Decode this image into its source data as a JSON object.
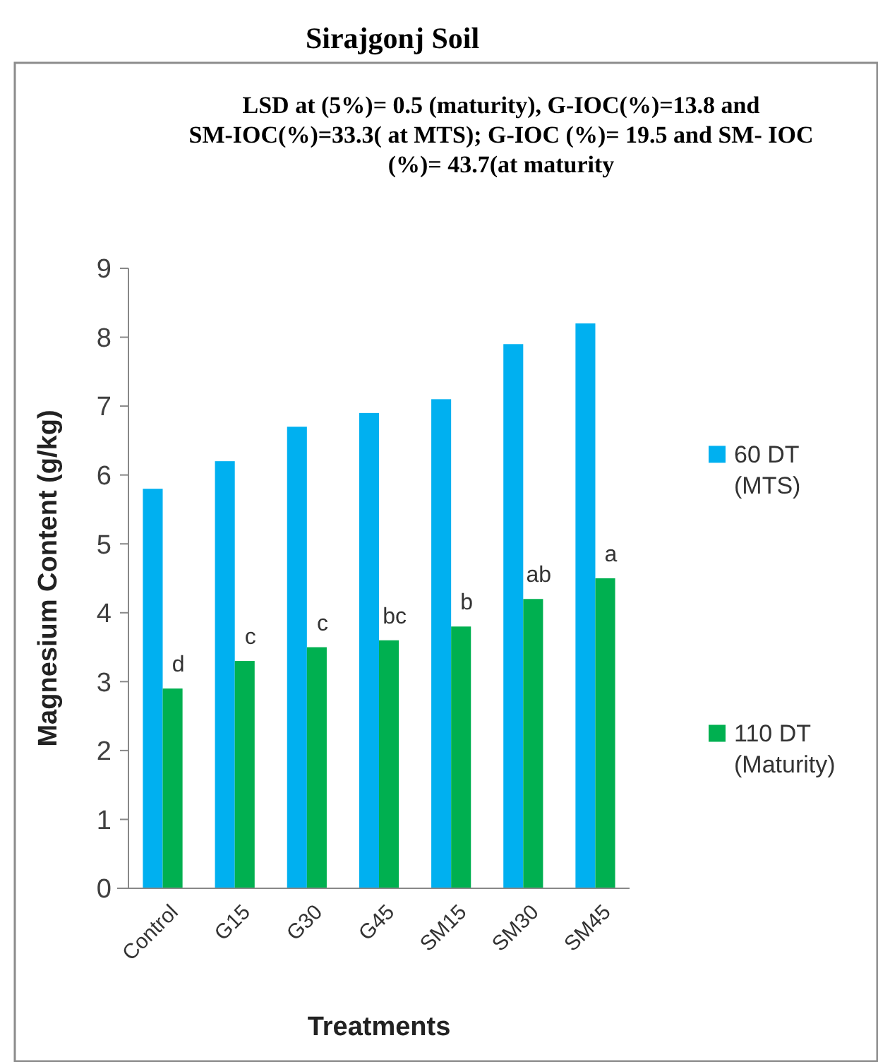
{
  "chart_data": {
    "type": "bar",
    "title": "Sirajgonj Soil",
    "annotations": [
      "LSD at (5%)= 0.5 (maturity), G-IOC(%)=13.8 and SM-IOC(%)=33.3( at MTS); G-IOC (%)= 19.5 and SM- IOC (%)= 43.7(at maturity"
    ],
    "xlabel": "Treatments",
    "ylabel": "Magnesium Content (g/kg)",
    "categories": [
      "Control",
      "G15",
      "G30",
      "G45",
      "SM15",
      "SM30",
      "SM45"
    ],
    "series": [
      {
        "name": "60 DT (MTS)",
        "color": "#00b0f0",
        "values": [
          5.8,
          6.2,
          6.7,
          6.9,
          7.1,
          7.9,
          8.2
        ]
      },
      {
        "name": "110 DT (Maturity)",
        "color": "#00b050",
        "values": [
          2.9,
          3.3,
          3.5,
          3.6,
          3.8,
          4.2,
          4.5
        ],
        "value_labels": [
          "d",
          "c",
          "c",
          "bc",
          "b",
          "ab",
          "a"
        ]
      }
    ],
    "ylim": [
      0,
      9
    ],
    "yticks": [
      0,
      1,
      2,
      3,
      4,
      5,
      6,
      7,
      8,
      9
    ],
    "legend": "right"
  }
}
